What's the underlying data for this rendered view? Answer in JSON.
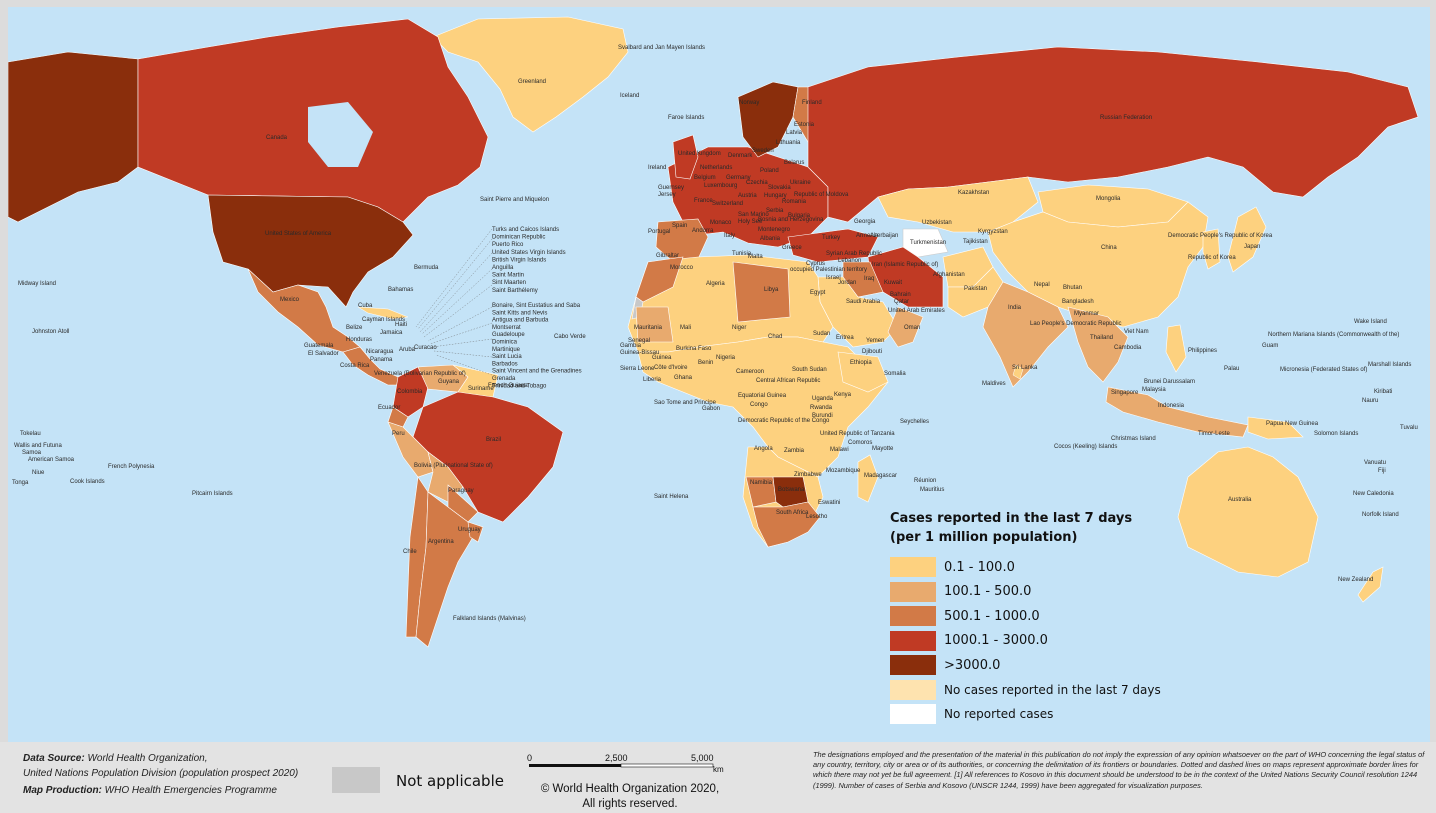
{
  "colors": {
    "ocean": "#c4e3f7",
    "c1": "#fdd17f",
    "c2": "#e8aa6e",
    "c3": "#d27a47",
    "c4": "#c03a24",
    "c5": "#8a2e0c",
    "nocases": "#fee3af",
    "noreport": "#ffffff",
    "na": "#c8c8c8"
  },
  "legend": {
    "title_line1": "Cases reported in the last 7 days",
    "title_line2": "(per 1 million population)",
    "items": [
      {
        "label": "0.1 - 100.0",
        "color": "#fdd17f"
      },
      {
        "label": "100.1 - 500.0",
        "color": "#e8aa6e"
      },
      {
        "label": "500.1 - 1000.0",
        "color": "#d27a47"
      },
      {
        "label": "1000.1 - 3000.0",
        "color": "#c03a24"
      },
      {
        "label": ">3000.0",
        "color": "#8a2e0c"
      },
      {
        "label": "No cases reported in the last 7 days",
        "color": "#fee3af"
      },
      {
        "label": "No reported cases",
        "color": "#ffffff"
      }
    ]
  },
  "labels": {
    "greenland": "Greenland",
    "svalbard": "Svalbard and Jan Mayen Islands",
    "iceland": "Iceland",
    "faroe": "Faroe Islands",
    "norway": "Norway",
    "finland": "Finland",
    "russia": "Russian Federation",
    "canada": "Canada",
    "usa": "United States of America",
    "mexico": "Mexico",
    "cuba": "Cuba",
    "bahamas": "Bahamas",
    "bermuda": "Bermuda",
    "stpierre": "Saint Pierre and Miquelon",
    "midway": "Midway Island",
    "johnston": "Johnston Atoll",
    "guatemala": "Guatemala",
    "elsalvador": "El Salvador",
    "honduras": "Honduras",
    "belize": "Belize",
    "nicaragua": "Nicaragua",
    "costarica": "Costa Rica",
    "panama": "Panama",
    "jamaica": "Jamaica",
    "haiti": "Haiti",
    "cayman": "Cayman Islands",
    "aruba": "Aruba",
    "curacao": "Curacao",
    "venezuela": "Venezuela (Bolivarian Republic of)",
    "guyana": "Guyana",
    "suriname": "Suriname",
    "frenchguiana": "French Guiana",
    "colombia": "Colombia",
    "ecuador": "Ecuador",
    "peru": "Peru",
    "brazil": "Brazil",
    "bolivia": "Bolivia (Plurinational State of)",
    "paraguay": "Paraguay",
    "chile": "Chile",
    "argentina": "Argentina",
    "uruguay": "Uruguay",
    "falkland": "Falkland Islands (Malvinas)",
    "caribbean_list1": [
      "Turks and Caicos Islands",
      "Dominican Republic",
      "Puerto Rico",
      "United States Virgin Islands",
      "British Virgin Islands",
      "Anguilla",
      "Saint Martin",
      "Sint Maarten",
      "Saint Barthélemy"
    ],
    "caribbean_list2": [
      "Bonaire, Sint Eustatius and Saba",
      "Saint Kitts and Nevis",
      "Antigua and Barbuda",
      "Montserrat",
      "Guadeloupe",
      "Dominica",
      "Martinique",
      "Saint Lucia",
      "Barbados",
      "Saint Vincent and the Grenadines",
      "Grenada",
      "Trinidad and Tobago"
    ],
    "caboverde": "Cabo Verde",
    "ireland": "Ireland",
    "uk": "United Kingdom",
    "guernsey": "Guernsey",
    "jersey": "Jersey",
    "portugal": "Portugal",
    "spain": "Spain",
    "andorra": "Andorra",
    "gibraltar": "Gibraltar",
    "monaco": "Monaco",
    "france": "France",
    "italy": "Italy",
    "malta": "Malta",
    "greece": "Greece",
    "turkey": "Turkey",
    "cyprus": "Cyprus",
    "lebanon": "Lebanon",
    "israel": "Israel",
    "jordan": "Jordan",
    "syria": "Syrian Arab Republic",
    "iraq": "Iraq",
    "kuwait": "Kuwait",
    "iran": "Iran (Islamic Republic of)",
    "saudi": "Saudi Arabia",
    "bahrain": "Bahrain",
    "qatar": "Qatar",
    "uae": "United Arab Emirates",
    "oman": "Oman",
    "yemen": "Yemen",
    "kazakhstan": "Kazakhstan",
    "uzbekistan": "Uzbekistan",
    "turkmenistan": "Turkmenistan",
    "kyrgyzstan": "Kyrgyzstan",
    "tajikistan": "Tajikistan",
    "afghanistan": "Afghanistan",
    "pakistan": "Pakistan",
    "india": "India",
    "nepal": "Nepal",
    "bhutan": "Bhutan",
    "bangladesh": "Bangladesh",
    "srilanka": "Sri Lanka",
    "maldives": "Maldives",
    "mongolia": "Mongolia",
    "china": "China",
    "nkorea": "Democratic People's Republic of Korea",
    "skorea": "Republic of Korea",
    "japan": "Japan",
    "myanmar": "Myanmar",
    "laos": "Lao People's Democratic Republic",
    "thailand": "Thailand",
    "vietnam": "Viet Nam",
    "cambodia": "Cambodia",
    "philippines": "Philippines",
    "malaysia": "Malaysia",
    "singapore": "Singapore",
    "brunei": "Brunei Darussalam",
    "indonesia": "Indonesia",
    "timorleste": "Timor-Leste",
    "christmas": "Christmas Island",
    "cocos": "Cocos (Keeling) Islands",
    "png": "Papua New Guinea",
    "solomon": "Solomon Islands",
    "australia": "Australia",
    "newzealand": "New Zealand",
    "newcaledonia": "New Caledonia",
    "norfolk": "Norfolk Island",
    "vanuatu": "Vanuatu",
    "fiji": "Fiji",
    "palau": "Palau",
    "guam": "Guam",
    "micronesia": "Micronesia (Federated States of)",
    "marshall": "Marshall Islands",
    "kiribati": "Kiribati",
    "nauru": "Nauru",
    "tuvalu": "Tuvalu",
    "wake": "Wake Island",
    "nmariana": "Northern Mariana Islands (Commonwealth of the)",
    "tokelau": "Tokelau",
    "wallis": "Wallis and Futuna",
    "samoa": "Samoa",
    "amsamoa": "American Samoa",
    "niue": "Niue",
    "tonga": "Tonga",
    "cook": "Cook Islands",
    "frpolynesia": "French Polynesia",
    "pitcairn": "Pitcairn Islands",
    "morocco": "Morocco",
    "algeria": "Algeria",
    "tunisia": "Tunisia",
    "libya": "Libya",
    "egypt": "Egypt",
    "mauritania": "Mauritania",
    "mali": "Mali",
    "niger": "Niger",
    "chad": "Chad",
    "sudan": "Sudan",
    "senegal": "Senegal",
    "gambia": "Gambia",
    "guineabissau": "Guinea-Bissau",
    "guinea": "Guinea",
    "sierraleone": "Sierra Leone",
    "liberia": "Liberia",
    "cotedivoire": "Côte d'Ivoire",
    "ghana": "Ghana",
    "burkinafaso": "Burkina Faso",
    "nigeria": "Nigeria",
    "benin": "Benin",
    "cameroon": "Cameroon",
    "car": "Central African Republic",
    "southsudan": "South Sudan",
    "ethiopia": "Ethiopia",
    "eritrea": "Eritrea",
    "djibouti": "Djibouti",
    "somalia": "Somalia",
    "kenya": "Kenya",
    "uganda": "Uganda",
    "rwanda": "Rwanda",
    "burundi": "Burundi",
    "tanzania": "United Republic of Tanzania",
    "drc": "Democratic Republic of the Congo",
    "congo": "Congo",
    "gabon": "Gabon",
    "eqguinea": "Equatorial Guinea",
    "saotome": "Sao Tome and Principe",
    "angola": "Angola",
    "zambia": "Zambia",
    "malawi": "Malawi",
    "mozambique": "Mozambique",
    "zimbabwe": "Zimbabwe",
    "namibia": "Namibia",
    "botswana": "Botswana",
    "southafrica": "South Africa",
    "lesotho": "Lesotho",
    "eswatini": "Eswatini",
    "madagascar": "Madagascar",
    "comoros": "Comoros",
    "mayotte": "Mayotte",
    "seychelles": "Seychelles",
    "reunion": "Réunion",
    "mauritius": "Mauritius",
    "sthelena": "Saint Helena",
    "belarus": "Belarus",
    "ukraine": "Ukraine",
    "poland": "Poland",
    "germany": "Germany",
    "netherlands": "Netherlands",
    "belgium": "Belgium",
    "luxembourg": "Luxembourg",
    "switzerland": "Switzerland",
    "austria": "Austria",
    "czechia": "Czechia",
    "slovakia": "Slovakia",
    "hungary": "Hungary",
    "romania": "Romania",
    "moldova": "Republic of Moldova",
    "bulgaria": "Bulgaria",
    "serbia": "Serbia",
    "albania": "Albania",
    "lithuania": "Lithuania",
    "latvia": "Latvia",
    "estonia": "Estonia",
    "georgia": "Georgia",
    "armenia": "Armenia",
    "azerbaijan": "Azerbaijan",
    "sanmarino": "San Marino",
    "holysee": "Holy See",
    "bosnia": "Bosnia and Herzegovina",
    "montenegro": "Montenegro",
    "sweden": "Sweden",
    "denmark": "Denmark",
    "occupied": "occupied Palestinian territory"
  },
  "footer": {
    "source_label": "Data Source:",
    "source_text": "World Health Organization,",
    "source_line2": "United Nations Population Division (population prospect 2020)",
    "production_label": "Map Production:",
    "production_text": "WHO Health Emergencies Programme",
    "not_applicable": "Not applicable",
    "scale_0": "0",
    "scale_1": "2,500",
    "scale_2": "5,000",
    "scale_unit": "km",
    "copyright_line1": "© World Health Organization  2020,",
    "copyright_line2": "All rights reserved.",
    "disclaimer": "The designations employed and the presentation of the material in this publication do not imply the expression of any opinion whatsoever on the part of WHO concerning the legal status of any country, territory, city or area or of its authorities, or concerning the delimitation of its frontiers or boundaries. Dotted and dashed lines on maps represent approximate border lines for which there may not yet be full agreement. [1] All references to Kosovo in this document should be understood to be in the context of the United Nations Security Council resolution 1244 (1999). Number of cases of Serbia and Kosovo (UNSCR 1244, 1999) have been aggregated for visualization purposes."
  }
}
